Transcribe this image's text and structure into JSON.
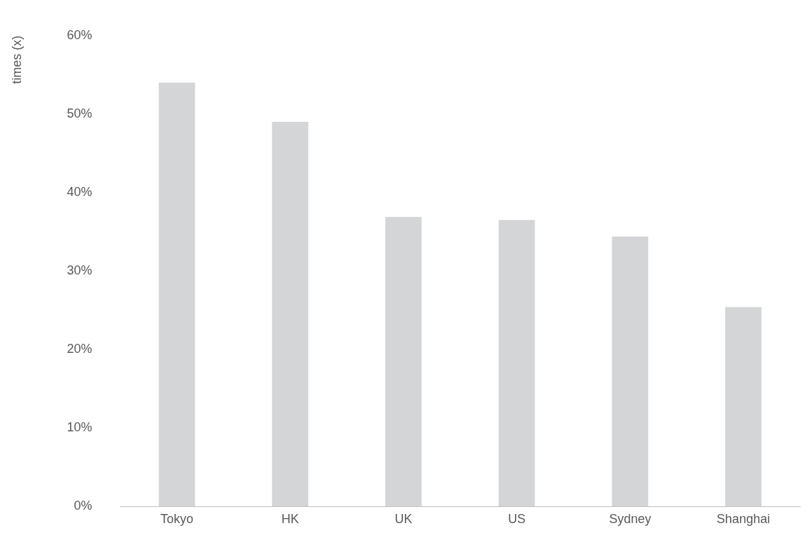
{
  "chart_data": {
    "type": "bar",
    "ylabel": "times (x)",
    "categories": [
      "Tokyo",
      "HK",
      "UK",
      "US",
      "Sydney",
      "Shanghai"
    ],
    "values": [
      54,
      49,
      36.9,
      36.5,
      34.4,
      25.4
    ],
    "color": "#d4d5d7",
    "ylim": [
      0,
      60
    ],
    "yticks": [
      {
        "value": 0,
        "label": "0%"
      },
      {
        "value": 10,
        "label": "10%"
      },
      {
        "value": 20,
        "label": "20%"
      },
      {
        "value": 30,
        "label": "30%"
      },
      {
        "value": 40,
        "label": "40%"
      },
      {
        "value": 50,
        "label": "50%"
      },
      {
        "value": 60,
        "label": "60%"
      }
    ],
    "grid": false,
    "legend": false
  }
}
